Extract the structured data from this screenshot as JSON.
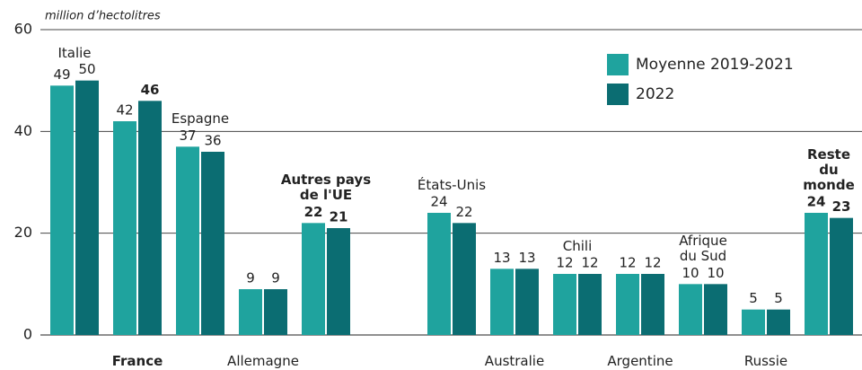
{
  "chart_data": {
    "type": "bar",
    "y_axis_label": "million d’hectolitres",
    "categories": [
      "Italie",
      "France",
      "Espagne",
      "Allemagne",
      "Autres pays\nde l'UE",
      null,
      "États-Unis",
      "Australie",
      "Chili",
      "Argentine",
      "Afrique\ndu Sud",
      "Russie",
      "Reste\ndu monde"
    ],
    "series": [
      {
        "name": "Moyenne 2019-2021",
        "color": "#1fa39e",
        "values": [
          49,
          42,
          37,
          9,
          22,
          null,
          24,
          13,
          12,
          12,
          10,
          5,
          24
        ]
      },
      {
        "name": "2022",
        "color": "#0b6d72",
        "values": [
          50,
          46,
          36,
          9,
          21,
          null,
          22,
          13,
          12,
          12,
          10,
          5,
          23
        ]
      }
    ],
    "ylim": [
      0,
      60
    ],
    "yticks": [
      0,
      20,
      40,
      60
    ],
    "grid": true,
    "legend": "top-right"
  }
}
